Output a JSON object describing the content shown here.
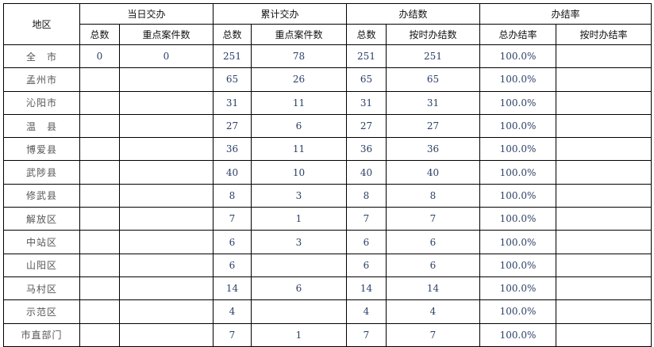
{
  "headers": {
    "region": "地区",
    "groups": [
      "当日交办",
      "累计交办",
      "办结数",
      "办结率"
    ],
    "sub": [
      "总数",
      "重点案件数",
      "总数",
      "重点案件数",
      "总数",
      "按时办结数",
      "总办结率",
      "按时办结率"
    ]
  },
  "rows": [
    {
      "region": "全　市",
      "cells": [
        "0",
        "0",
        "251",
        "78",
        "251",
        "251",
        "100.0%",
        ""
      ]
    },
    {
      "region": "孟州市",
      "cells": [
        "",
        "",
        "65",
        "26",
        "65",
        "65",
        "100.0%",
        ""
      ]
    },
    {
      "region": "沁阳市",
      "cells": [
        "",
        "",
        "31",
        "11",
        "31",
        "31",
        "100.0%",
        ""
      ]
    },
    {
      "region": "温　县",
      "cells": [
        "",
        "",
        "27",
        "6",
        "27",
        "27",
        "100.0%",
        ""
      ]
    },
    {
      "region": "博爱县",
      "cells": [
        "",
        "",
        "36",
        "11",
        "36",
        "36",
        "100.0%",
        ""
      ]
    },
    {
      "region": "武陟县",
      "cells": [
        "",
        "",
        "40",
        "10",
        "40",
        "40",
        "100.0%",
        ""
      ]
    },
    {
      "region": "修武县",
      "cells": [
        "",
        "",
        "8",
        "3",
        "8",
        "8",
        "100.0%",
        ""
      ]
    },
    {
      "region": "解放区",
      "cells": [
        "",
        "",
        "7",
        "1",
        "7",
        "7",
        "100.0%",
        ""
      ]
    },
    {
      "region": "中站区",
      "cells": [
        "",
        "",
        "6",
        "3",
        "6",
        "6",
        "100.0%",
        ""
      ]
    },
    {
      "region": "山阳区",
      "cells": [
        "",
        "",
        "6",
        "",
        "6",
        "6",
        "100.0%",
        ""
      ]
    },
    {
      "region": "马村区",
      "cells": [
        "",
        "",
        "14",
        "6",
        "14",
        "14",
        "100.0%",
        ""
      ]
    },
    {
      "region": "示范区",
      "cells": [
        "",
        "",
        "4",
        "",
        "4",
        "4",
        "100.0%",
        ""
      ]
    },
    {
      "region": "市直部门",
      "cells": [
        "",
        "",
        "7",
        "1",
        "7",
        "7",
        "100.0%",
        ""
      ]
    }
  ]
}
